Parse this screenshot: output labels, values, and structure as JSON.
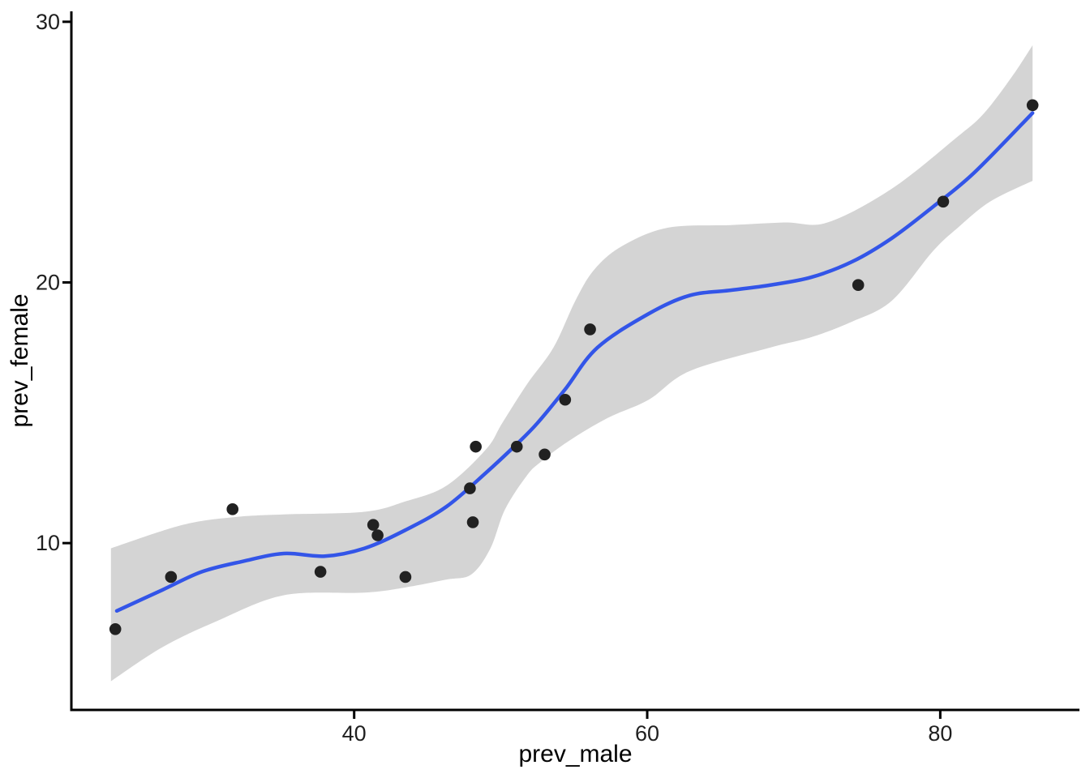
{
  "figure": {
    "background": "#FFFFFF"
  },
  "chart_data": {
    "type": "scatter",
    "title": "",
    "xlabel": "prev_male",
    "ylabel": "prev_female",
    "xlim": [
      20.7,
      89.5
    ],
    "ylim": [
      3.6,
      30.4
    ],
    "x_ticks": [
      "40",
      "60",
      "80"
    ],
    "x_tick_values": [
      40,
      60,
      80
    ],
    "y_ticks": [
      "10",
      "20",
      "30"
    ],
    "y_tick_values": [
      10,
      20,
      30
    ],
    "grid": false,
    "legend": false,
    "point_color": "#212121",
    "point_radius": 7.3,
    "line_color": "#3355E8",
    "line_width": 4.5,
    "ribbon_color": "#D4D4D4",
    "axis_color": "#000000",
    "tick_label_color": "#1F1F1F",
    "title_color": "#000000",
    "points": [
      {
        "x": 23.7,
        "y": 6.7
      },
      {
        "x": 27.5,
        "y": 8.7
      },
      {
        "x": 31.7,
        "y": 11.3
      },
      {
        "x": 37.7,
        "y": 8.9
      },
      {
        "x": 41.3,
        "y": 10.7
      },
      {
        "x": 41.6,
        "y": 10.3
      },
      {
        "x": 43.5,
        "y": 8.7
      },
      {
        "x": 47.9,
        "y": 12.1
      },
      {
        "x": 48.1,
        "y": 10.8
      },
      {
        "x": 48.3,
        "y": 13.7
      },
      {
        "x": 51.1,
        "y": 13.7
      },
      {
        "x": 53.0,
        "y": 13.4
      },
      {
        "x": 54.4,
        "y": 15.5
      },
      {
        "x": 56.1,
        "y": 18.2
      },
      {
        "x": 74.4,
        "y": 19.9
      },
      {
        "x": 80.2,
        "y": 23.1
      },
      {
        "x": 86.3,
        "y": 26.8
      }
    ],
    "smooth_line": [
      [
        23.8,
        7.4
      ],
      [
        26.9,
        8.2
      ],
      [
        29.6,
        8.9
      ],
      [
        32.4,
        9.3
      ],
      [
        35.2,
        9.6
      ],
      [
        38.0,
        9.5
      ],
      [
        40.7,
        9.8
      ],
      [
        43.5,
        10.5
      ],
      [
        46.3,
        11.4
      ],
      [
        49.0,
        12.7
      ],
      [
        51.1,
        13.8
      ],
      [
        52.5,
        14.6
      ],
      [
        54.4,
        15.9
      ],
      [
        56.6,
        17.5
      ],
      [
        60.1,
        18.8
      ],
      [
        62.9,
        19.5
      ],
      [
        65.7,
        19.7
      ],
      [
        68.4,
        19.9
      ],
      [
        71.2,
        20.2
      ],
      [
        74.0,
        20.8
      ],
      [
        76.7,
        21.7
      ],
      [
        79.5,
        22.9
      ],
      [
        82.3,
        24.2
      ],
      [
        86.3,
        26.5
      ]
    ],
    "ribbon_upper": [
      [
        23.4,
        9.8
      ],
      [
        28.3,
        10.7
      ],
      [
        31.9,
        11.0
      ],
      [
        35.2,
        11.1
      ],
      [
        40.7,
        11.2
      ],
      [
        43.5,
        11.6
      ],
      [
        46.3,
        12.2
      ],
      [
        49.0,
        13.6
      ],
      [
        50.1,
        14.6
      ],
      [
        51.8,
        16.1
      ],
      [
        53.6,
        17.5
      ],
      [
        55.1,
        19.3
      ],
      [
        56.4,
        20.5
      ],
      [
        58.3,
        21.4
      ],
      [
        61.4,
        22.1
      ],
      [
        65.7,
        22.2
      ],
      [
        69.4,
        22.3
      ],
      [
        72.3,
        22.3
      ],
      [
        76.7,
        23.6
      ],
      [
        81.2,
        25.6
      ],
      [
        83.0,
        26.5
      ],
      [
        84.9,
        27.9
      ],
      [
        86.3,
        29.1
      ]
    ],
    "ribbon_lower": [
      [
        23.4,
        4.7
      ],
      [
        26.9,
        6.0
      ],
      [
        30.6,
        7.0
      ],
      [
        35.2,
        8.0
      ],
      [
        40.7,
        8.1
      ],
      [
        43.5,
        8.3
      ],
      [
        46.3,
        8.6
      ],
      [
        48.0,
        8.8
      ],
      [
        49.3,
        9.8
      ],
      [
        50.3,
        11.3
      ],
      [
        51.8,
        12.6
      ],
      [
        52.7,
        13.1
      ],
      [
        54.6,
        13.9
      ],
      [
        57.3,
        14.8
      ],
      [
        60.1,
        15.5
      ],
      [
        62.9,
        16.6
      ],
      [
        68.4,
        17.5
      ],
      [
        71.2,
        17.9
      ],
      [
        74.0,
        18.5
      ],
      [
        76.7,
        19.3
      ],
      [
        79.5,
        21.2
      ],
      [
        81.2,
        22.1
      ],
      [
        83.4,
        23.1
      ],
      [
        86.3,
        23.9
      ]
    ]
  }
}
